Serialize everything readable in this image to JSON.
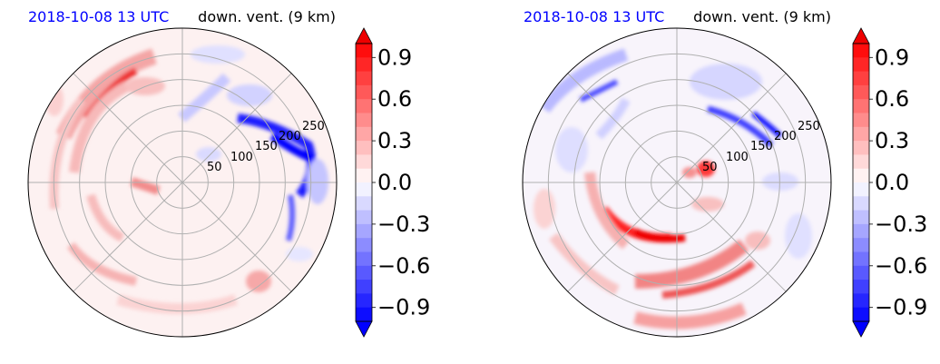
{
  "chart_data": [
    {
      "type": "heatmap",
      "projection": "polar",
      "title_left": "2018-10-08 13 UTC",
      "title_right": "down. vent. (9 km)",
      "radial_ticks": [
        50,
        100,
        150,
        200,
        250
      ],
      "rmax": 300,
      "angular_grid_step_deg": 45,
      "grid": true,
      "colorbar": {
        "ticks": [
          "0.9",
          "0.6",
          "0.3",
          "0.0",
          "−0.3",
          "−0.6",
          "−0.9"
        ],
        "tick_values": [
          0.9,
          0.6,
          0.3,
          0.0,
          -0.3,
          -0.6,
          -0.9
        ],
        "range": [
          -1.0,
          1.0
        ],
        "colormap": "bwr",
        "extend": "both"
      },
      "colors": {
        "positive": "#ff0000",
        "negative": "#0000ff",
        "date": "#0000ff"
      }
    },
    {
      "type": "heatmap",
      "projection": "polar",
      "title_left": "2018-10-08 13 UTC",
      "title_right": "down. vent. (9 km)",
      "radial_ticks": [
        50,
        100,
        150,
        200,
        250
      ],
      "rmax": 300,
      "angular_grid_step_deg": 45,
      "grid": true,
      "colorbar": {
        "ticks": [
          "0.9",
          "0.6",
          "0.3",
          "0.0",
          "−0.3",
          "−0.6",
          "−0.9"
        ],
        "tick_values": [
          0.9,
          0.6,
          0.3,
          0.0,
          -0.3,
          -0.6,
          -0.9
        ],
        "range": [
          -1.0,
          1.0
        ],
        "colormap": "bwr",
        "extend": "both"
      },
      "colors": {
        "positive": "#ff0000",
        "negative": "#0000ff",
        "date": "#0000ff"
      }
    }
  ]
}
